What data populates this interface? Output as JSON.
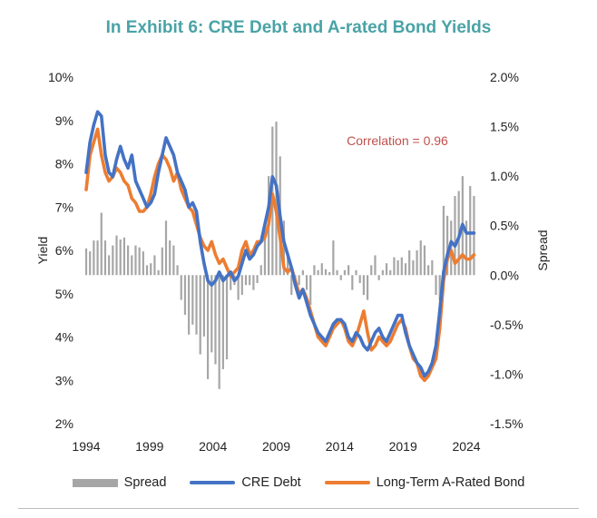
{
  "title": "In Exhibit 6: CRE Debt and A-rated Bond Yields",
  "annotation": {
    "text": "Correlation = 0.96",
    "color": "#c0504d"
  },
  "legend": {
    "spread": "Spread",
    "cre": "CRE Debt",
    "bond": "Long-Term A-Rated Bond"
  },
  "colors": {
    "spread": "#a6a6a6",
    "cre": "#4472c4",
    "bond": "#ed7d31",
    "title": "#4aa3a6"
  },
  "chart_data": {
    "type": "line",
    "title": "In Exhibit 6: CRE Debt and A-rated Bond Yields",
    "ylabel": "Yield",
    "y2label": "Spread",
    "xlim": [
      1994,
      2025
    ],
    "ylim": [
      2,
      10
    ],
    "y2lim": [
      -1.5,
      2.0
    ],
    "xticks": [
      "1994",
      "1999",
      "2004",
      "2009",
      "2014",
      "2019",
      "2024"
    ],
    "xtick_values": [
      1994,
      1999,
      2004,
      2009,
      2014,
      2019,
      2024
    ],
    "yticks": [
      "2%",
      "3%",
      "4%",
      "5%",
      "6%",
      "7%",
      "8%",
      "9%",
      "10%"
    ],
    "y2ticks": [
      "-1.5%",
      "-1.0%",
      "-0.5%",
      "0.0%",
      "0.5%",
      "1.0%",
      "1.5%",
      "2.0%"
    ],
    "series": [
      {
        "name": "CRE Debt",
        "axis": "left",
        "color": "#4472c4",
        "x": [
          1994.0,
          1994.3,
          1994.6,
          1994.9,
          1995.2,
          1995.5,
          1995.8,
          1996.1,
          1996.4,
          1996.7,
          1997.0,
          1997.3,
          1997.6,
          1997.9,
          1998.2,
          1998.5,
          1998.8,
          1999.1,
          1999.4,
          1999.7,
          2000.0,
          2000.3,
          2000.6,
          2000.9,
          2001.2,
          2001.5,
          2001.8,
          2002.1,
          2002.4,
          2002.7,
          2003.0,
          2003.3,
          2003.6,
          2003.9,
          2004.2,
          2004.5,
          2004.8,
          2005.1,
          2005.4,
          2005.7,
          2006.0,
          2006.3,
          2006.6,
          2006.9,
          2007.2,
          2007.5,
          2007.8,
          2008.1,
          2008.4,
          2008.7,
          2009.0,
          2009.3,
          2009.6,
          2009.9,
          2010.2,
          2010.5,
          2010.8,
          2011.1,
          2011.4,
          2011.7,
          2012.0,
          2012.3,
          2012.6,
          2012.9,
          2013.2,
          2013.5,
          2013.8,
          2014.1,
          2014.4,
          2014.7,
          2015.0,
          2015.3,
          2015.6,
          2015.9,
          2016.2,
          2016.5,
          2016.8,
          2017.1,
          2017.4,
          2017.7,
          2018.0,
          2018.3,
          2018.6,
          2018.9,
          2019.2,
          2019.5,
          2019.8,
          2020.1,
          2020.4,
          2020.7,
          2021.0,
          2021.3,
          2021.6,
          2021.9,
          2022.2,
          2022.5,
          2022.8,
          2023.1,
          2023.4,
          2023.7,
          2024.0,
          2024.3,
          2024.6
        ],
        "y": [
          7.8,
          8.5,
          8.9,
          9.2,
          9.1,
          8.2,
          7.8,
          7.7,
          8.1,
          8.4,
          8.1,
          7.9,
          8.2,
          7.6,
          7.4,
          7.2,
          7.0,
          7.1,
          7.3,
          7.8,
          8.2,
          8.6,
          8.4,
          8.2,
          7.8,
          7.6,
          7.4,
          7.0,
          7.1,
          6.9,
          6.2,
          5.7,
          5.3,
          5.2,
          5.3,
          5.5,
          5.3,
          5.4,
          5.5,
          5.3,
          5.4,
          5.7,
          6.0,
          5.8,
          5.9,
          6.1,
          6.2,
          6.6,
          7.0,
          7.7,
          7.5,
          6.8,
          6.2,
          5.9,
          5.6,
          5.2,
          4.9,
          5.1,
          4.8,
          4.5,
          4.3,
          4.1,
          4.0,
          3.9,
          4.1,
          4.3,
          4.4,
          4.4,
          4.3,
          4.0,
          3.9,
          4.1,
          4.0,
          3.8,
          3.7,
          3.9,
          4.1,
          4.2,
          4.0,
          3.9,
          4.1,
          4.3,
          4.5,
          4.5,
          4.1,
          3.8,
          3.6,
          3.4,
          3.3,
          3.1,
          3.2,
          3.4,
          3.8,
          4.6,
          5.5,
          5.9,
          6.2,
          6.1,
          6.3,
          6.6,
          6.4,
          6.4,
          6.4
        ]
      },
      {
        "name": "Long-Term A-Rated Bond",
        "axis": "left",
        "color": "#ed7d31",
        "x": [
          1994.0,
          1994.3,
          1994.6,
          1994.9,
          1995.2,
          1995.5,
          1995.8,
          1996.1,
          1996.4,
          1996.7,
          1997.0,
          1997.3,
          1997.6,
          1997.9,
          1998.2,
          1998.5,
          1998.8,
          1999.1,
          1999.4,
          1999.7,
          2000.0,
          2000.3,
          2000.6,
          2000.9,
          2001.2,
          2001.5,
          2001.8,
          2002.1,
          2002.4,
          2002.7,
          2003.0,
          2003.3,
          2003.6,
          2003.9,
          2004.2,
          2004.5,
          2004.8,
          2005.1,
          2005.4,
          2005.7,
          2006.0,
          2006.3,
          2006.6,
          2006.9,
          2007.2,
          2007.5,
          2007.8,
          2008.1,
          2008.4,
          2008.7,
          2009.0,
          2009.3,
          2009.6,
          2009.9,
          2010.2,
          2010.5,
          2010.8,
          2011.1,
          2011.4,
          2011.7,
          2012.0,
          2012.3,
          2012.6,
          2012.9,
          2013.2,
          2013.5,
          2013.8,
          2014.1,
          2014.4,
          2014.7,
          2015.0,
          2015.3,
          2015.6,
          2015.9,
          2016.2,
          2016.5,
          2016.8,
          2017.1,
          2017.4,
          2017.7,
          2018.0,
          2018.3,
          2018.6,
          2018.9,
          2019.2,
          2019.5,
          2019.8,
          2020.1,
          2020.4,
          2020.7,
          2021.0,
          2021.3,
          2021.6,
          2021.9,
          2022.2,
          2022.5,
          2022.8,
          2023.1,
          2023.4,
          2023.7,
          2024.0,
          2024.3,
          2024.6
        ],
        "y": [
          7.4,
          8.2,
          8.5,
          8.8,
          8.2,
          7.8,
          7.6,
          7.7,
          7.9,
          7.8,
          7.6,
          7.5,
          7.2,
          7.1,
          6.9,
          6.9,
          7.0,
          7.3,
          7.7,
          8.0,
          8.2,
          8.1,
          7.9,
          7.6,
          7.8,
          7.4,
          7.2,
          7.0,
          6.9,
          6.6,
          6.3,
          6.1,
          6.0,
          6.2,
          5.9,
          5.7,
          5.8,
          5.6,
          5.4,
          5.5,
          5.6,
          6.0,
          6.2,
          5.9,
          6.0,
          6.2,
          6.2,
          6.3,
          6.6,
          7.3,
          6.9,
          6.3,
          5.6,
          5.5,
          5.6,
          5.3,
          5.0,
          5.1,
          4.9,
          4.6,
          4.3,
          4.0,
          3.9,
          3.8,
          4.0,
          4.2,
          4.3,
          4.4,
          4.2,
          3.9,
          3.8,
          4.0,
          4.3,
          4.6,
          4.1,
          3.7,
          3.8,
          4.0,
          3.9,
          3.8,
          3.9,
          4.1,
          4.3,
          4.4,
          4.2,
          3.8,
          3.5,
          3.4,
          3.1,
          3.0,
          3.1,
          3.3,
          3.5,
          4.2,
          5.3,
          5.8,
          6.0,
          5.7,
          5.8,
          5.9,
          5.8,
          5.8,
          5.9
        ]
      },
      {
        "name": "Spread",
        "axis": "right",
        "type": "bar",
        "color": "#a6a6a6",
        "x": [
          1994.0,
          1994.3,
          1994.6,
          1994.9,
          1995.2,
          1995.5,
          1995.8,
          1996.1,
          1996.4,
          1996.7,
          1997.0,
          1997.3,
          1997.6,
          1997.9,
          1998.2,
          1998.5,
          1998.8,
          1999.1,
          1999.4,
          1999.7,
          2000.0,
          2000.3,
          2000.6,
          2000.9,
          2001.2,
          2001.5,
          2001.8,
          2002.1,
          2002.4,
          2002.7,
          2003.0,
          2003.3,
          2003.6,
          2003.9,
          2004.2,
          2004.5,
          2004.8,
          2005.1,
          2005.4,
          2005.7,
          2006.0,
          2006.3,
          2006.6,
          2006.9,
          2007.2,
          2007.5,
          2007.8,
          2008.1,
          2008.4,
          2008.7,
          2009.0,
          2009.3,
          2009.6,
          2009.9,
          2010.2,
          2010.5,
          2010.8,
          2011.1,
          2011.4,
          2011.7,
          2012.0,
          2012.3,
          2012.6,
          2012.9,
          2013.2,
          2013.5,
          2013.8,
          2014.1,
          2014.4,
          2014.7,
          2015.0,
          2015.3,
          2015.6,
          2015.9,
          2016.2,
          2016.5,
          2016.8,
          2017.1,
          2017.4,
          2017.7,
          2018.0,
          2018.3,
          2018.6,
          2018.9,
          2019.2,
          2019.5,
          2019.8,
          2020.1,
          2020.4,
          2020.7,
          2021.0,
          2021.3,
          2021.6,
          2021.9,
          2022.2,
          2022.5,
          2022.8,
          2023.1,
          2023.4,
          2023.7,
          2024.0,
          2024.3,
          2024.6
        ],
        "values": [
          0.27,
          0.24,
          0.35,
          0.35,
          0.63,
          0.35,
          0.2,
          0.3,
          0.4,
          0.36,
          0.38,
          0.3,
          0.2,
          0.3,
          0.28,
          0.24,
          0.1,
          0.12,
          0.2,
          0.05,
          0.28,
          0.55,
          0.35,
          0.3,
          0.1,
          -0.25,
          -0.4,
          -0.6,
          -0.5,
          -0.6,
          -0.8,
          -0.62,
          -1.05,
          -0.78,
          -0.9,
          -1.15,
          -0.95,
          -0.85,
          -0.15,
          -0.1,
          -0.25,
          -0.2,
          -0.1,
          -0.1,
          -0.15,
          -0.08,
          0.1,
          0.4,
          1.0,
          1.5,
          1.55,
          1.2,
          0.55,
          0.2,
          -0.2,
          -0.05,
          -0.1,
          0.05,
          -0.15,
          -0.3,
          0.1,
          0.05,
          0.12,
          0.06,
          0.03,
          0.35,
          0.05,
          -0.05,
          0.05,
          0.1,
          -0.15,
          0.05,
          -0.08,
          -0.2,
          -0.25,
          0.1,
          0.2,
          -0.05,
          0.05,
          0.12,
          0.05,
          0.18,
          0.15,
          0.18,
          0.12,
          0.25,
          0.15,
          0.25,
          0.35,
          0.3,
          0.1,
          0.15,
          -0.2,
          -0.25,
          0.7,
          0.6,
          0.55,
          0.8,
          0.85,
          1.0,
          0.55,
          0.9,
          0.8
        ]
      }
    ]
  }
}
